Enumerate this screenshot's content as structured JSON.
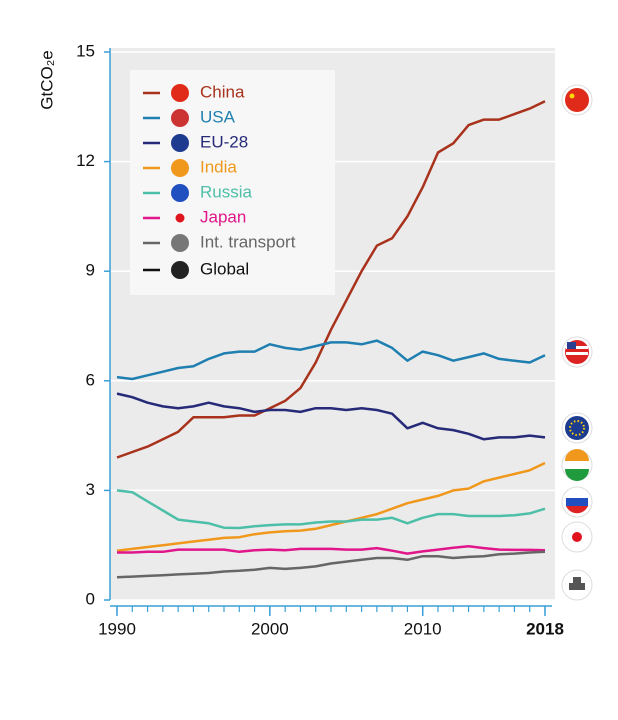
{
  "chart_data": {
    "type": "line",
    "y_label": "GtCO₂e",
    "x": [
      1990,
      1991,
      1992,
      1993,
      1994,
      1995,
      1996,
      1997,
      1998,
      1999,
      2000,
      2001,
      2002,
      2003,
      2004,
      2005,
      2006,
      2007,
      2008,
      2009,
      2010,
      2011,
      2012,
      2013,
      2014,
      2015,
      2016,
      2017,
      2018
    ],
    "xlim": [
      1990,
      2018
    ],
    "xticks": [
      1990,
      2000,
      2010,
      2018
    ],
    "ylim": [
      0,
      15
    ],
    "yticks": [
      0,
      3,
      6,
      9,
      12,
      15
    ],
    "grid": true,
    "legend": "upper left",
    "series": [
      {
        "name": "China",
        "color": "#a8321c",
        "values": [
          3.9,
          4.05,
          4.2,
          4.4,
          4.6,
          5.0,
          5.0,
          5.0,
          5.05,
          5.05,
          5.25,
          5.45,
          5.8,
          6.5,
          7.4,
          8.2,
          9.0,
          9.7,
          9.9,
          10.5,
          11.3,
          12.25,
          12.5,
          13.0,
          13.15,
          13.15,
          13.3,
          13.45,
          13.65
        ]
      },
      {
        "name": "USA",
        "color": "#1f7fb0",
        "values": [
          6.1,
          6.05,
          6.15,
          6.25,
          6.35,
          6.4,
          6.6,
          6.75,
          6.8,
          6.8,
          7.0,
          6.9,
          6.85,
          6.95,
          7.05,
          7.05,
          7.0,
          7.1,
          6.9,
          6.55,
          6.8,
          6.7,
          6.55,
          6.65,
          6.75,
          6.6,
          6.55,
          6.5,
          6.7
        ]
      },
      {
        "name": "EU-28",
        "color": "#262a78",
        "values": [
          5.65,
          5.55,
          5.4,
          5.3,
          5.25,
          5.3,
          5.4,
          5.3,
          5.25,
          5.15,
          5.2,
          5.2,
          5.15,
          5.25,
          5.25,
          5.2,
          5.25,
          5.2,
          5.1,
          4.7,
          4.85,
          4.7,
          4.65,
          4.55,
          4.4,
          4.45,
          4.45,
          4.5,
          4.45
        ]
      },
      {
        "name": "India",
        "color": "#f0981c",
        "values": [
          1.35,
          1.4,
          1.45,
          1.5,
          1.55,
          1.6,
          1.65,
          1.7,
          1.72,
          1.8,
          1.85,
          1.88,
          1.9,
          1.95,
          2.05,
          2.15,
          2.25,
          2.35,
          2.5,
          2.65,
          2.75,
          2.85,
          3.0,
          3.05,
          3.25,
          3.35,
          3.45,
          3.55,
          3.75
        ]
      },
      {
        "name": "Russia",
        "color": "#4dbfa8",
        "values": [
          3.0,
          2.95,
          2.7,
          2.45,
          2.2,
          2.15,
          2.1,
          1.98,
          1.97,
          2.02,
          2.05,
          2.07,
          2.07,
          2.12,
          2.15,
          2.15,
          2.2,
          2.2,
          2.25,
          2.1,
          2.25,
          2.35,
          2.35,
          2.3,
          2.3,
          2.3,
          2.32,
          2.37,
          2.5
        ]
      },
      {
        "name": "Japan",
        "color": "#e0168a",
        "values": [
          1.3,
          1.3,
          1.32,
          1.32,
          1.38,
          1.38,
          1.38,
          1.38,
          1.32,
          1.36,
          1.38,
          1.36,
          1.4,
          1.4,
          1.4,
          1.38,
          1.38,
          1.42,
          1.35,
          1.27,
          1.33,
          1.38,
          1.43,
          1.47,
          1.42,
          1.38,
          1.37,
          1.37,
          1.36
        ]
      },
      {
        "name": "Int. transport",
        "color": "#666666",
        "values": [
          0.62,
          0.64,
          0.66,
          0.68,
          0.7,
          0.72,
          0.74,
          0.78,
          0.8,
          0.83,
          0.88,
          0.85,
          0.88,
          0.92,
          1.0,
          1.05,
          1.1,
          1.15,
          1.15,
          1.1,
          1.2,
          1.2,
          1.15,
          1.18,
          1.2,
          1.25,
          1.27,
          1.3,
          1.32
        ]
      },
      {
        "name": "Global",
        "color": "#111111",
        "values": [
          null,
          null,
          null,
          null,
          null,
          null,
          null,
          null,
          null,
          null,
          null,
          null,
          null,
          null,
          null,
          null,
          null,
          null,
          null,
          null,
          null,
          null,
          null,
          null,
          null,
          null,
          null,
          null,
          null
        ]
      }
    ]
  }
}
